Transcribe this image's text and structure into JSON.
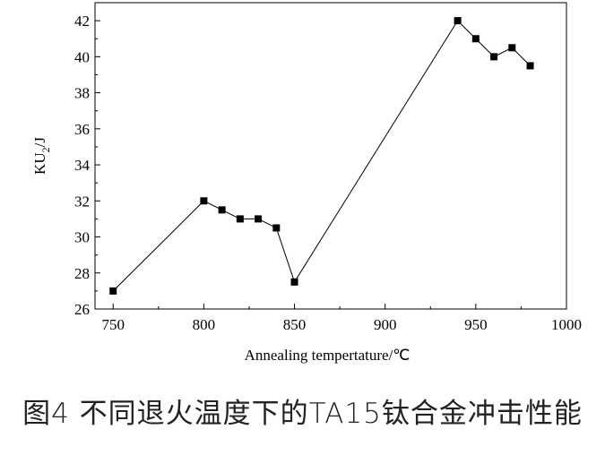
{
  "chart_data": {
    "type": "line",
    "xlabel": "Annealing tempertature/℃",
    "ylabel_main": "KU",
    "ylabel_sub": "2",
    "ylabel_tail": "/J",
    "xlim": [
      740,
      1000
    ],
    "ylim": [
      26,
      43
    ],
    "xticks": [
      750,
      800,
      850,
      900,
      950,
      1000
    ],
    "yticks": [
      26,
      28,
      30,
      32,
      34,
      36,
      38,
      40,
      42
    ],
    "grid": false,
    "marker": "square",
    "color": "#000000",
    "series": [
      {
        "x": [
          750,
          800,
          810,
          820,
          830,
          840,
          850,
          940,
          950,
          960,
          970,
          980
        ],
        "y": [
          27,
          32,
          31.5,
          31,
          31,
          30.5,
          27.5,
          42,
          41,
          40,
          40.5,
          39.5
        ]
      }
    ]
  },
  "caption": "图4  不同退火温度下的TA15钛合金冲击性能"
}
